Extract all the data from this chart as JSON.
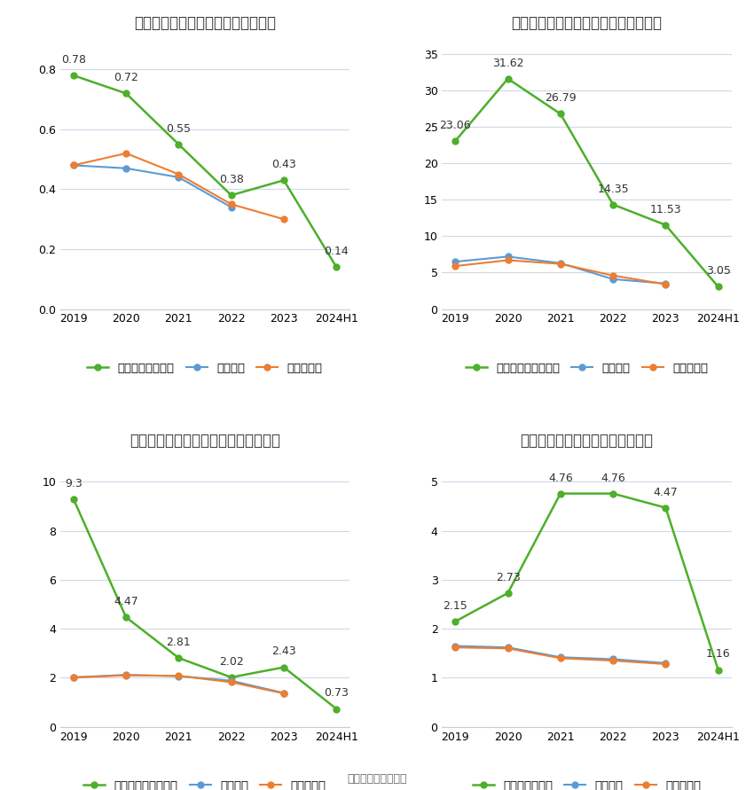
{
  "years": [
    "2019",
    "2020",
    "2021",
    "2022",
    "2023",
    "2024H1"
  ],
  "charts": [
    {
      "title": "霍莱沃历年总资产周转率情况（次）",
      "company_label": "公司总资产周转率",
      "company": [
        0.78,
        0.72,
        0.55,
        0.38,
        0.43,
        0.14
      ],
      "industry_avg": [
        0.48,
        0.47,
        0.44,
        0.34,
        null,
        null
      ],
      "industry_med": [
        0.48,
        0.52,
        0.45,
        0.35,
        0.3,
        null
      ],
      "ylim": [
        0,
        0.9
      ],
      "yticks": [
        0,
        0.2,
        0.4,
        0.6,
        0.8
      ]
    },
    {
      "title": "霍莱沃历年固定资产周转率情况（次）",
      "company_label": "公司固定资产周转率",
      "company": [
        23.06,
        31.62,
        26.79,
        14.35,
        11.53,
        3.05
      ],
      "industry_avg": [
        6.5,
        7.2,
        6.3,
        4.1,
        3.5,
        null
      ],
      "industry_med": [
        5.9,
        6.7,
        6.2,
        4.6,
        3.4,
        null
      ],
      "ylim": [
        0,
        37
      ],
      "yticks": [
        0,
        5,
        10,
        15,
        20,
        25,
        30,
        35
      ]
    },
    {
      "title": "霍莱沃历年应收账款周转率情况（次）",
      "company_label": "公司应收账款周转率",
      "company": [
        9.3,
        4.47,
        2.81,
        2.02,
        2.43,
        0.73
      ],
      "industry_avg": [
        2.02,
        2.12,
        2.07,
        1.88,
        1.38,
        null
      ],
      "industry_med": [
        2.01,
        2.1,
        2.08,
        1.82,
        1.36,
        null
      ],
      "ylim": [
        0,
        11
      ],
      "yticks": [
        0,
        2,
        4,
        6,
        8,
        10
      ]
    },
    {
      "title": "霍莱沃历年存货周转率情况（次）",
      "company_label": "公司存货周转率",
      "company": [
        2.15,
        2.73,
        4.76,
        4.76,
        4.47,
        1.16
      ],
      "industry_avg": [
        1.65,
        1.62,
        1.42,
        1.38,
        1.3,
        null
      ],
      "industry_med": [
        1.62,
        1.6,
        1.4,
        1.35,
        1.28,
        null
      ],
      "ylim": [
        0,
        5.5
      ],
      "yticks": [
        0,
        1,
        2,
        3,
        4,
        5
      ]
    }
  ],
  "green": "#4daf2a",
  "blue": "#5b9bd5",
  "orange": "#ed7d31",
  "bg_color": "#ffffff",
  "grid_color": "#d0d8e8",
  "label_fontsize": 9.5,
  "title_fontsize": 12,
  "annotation_fontsize": 9,
  "source_text": "数据来源：恒生聚源"
}
